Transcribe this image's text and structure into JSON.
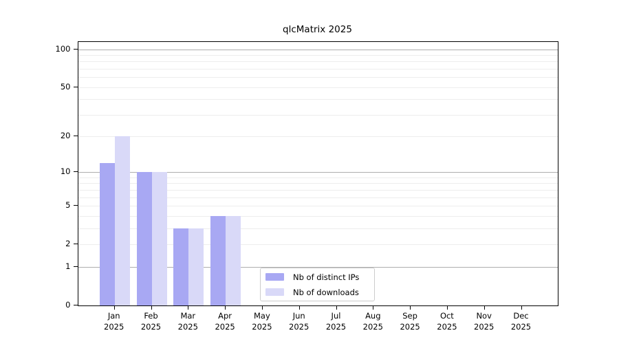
{
  "chart_data": {
    "type": "bar",
    "title": "qlcMatrix 2025",
    "categories": [
      "Jan 2025",
      "Feb 2025",
      "Mar 2025",
      "Apr 2025",
      "May 2025",
      "Jun 2025",
      "Jul 2025",
      "Aug 2025",
      "Sep 2025",
      "Oct 2025",
      "Nov 2025",
      "Dec 2025"
    ],
    "series": [
      {
        "name": "Nb of distinct IPs",
        "color": "#a8a8f3",
        "values": [
          12,
          10,
          3,
          4,
          0,
          0,
          0,
          0,
          0,
          0,
          0,
          0
        ]
      },
      {
        "name": "Nb of downloads",
        "color": "#d9d9f8",
        "values": [
          20,
          10,
          3,
          4,
          0,
          0,
          0,
          0,
          0,
          0,
          0,
          0
        ]
      }
    ],
    "y_axis": {
      "scale": "log10(1+x)",
      "tick_values": [
        100,
        50,
        20,
        10,
        5,
        2,
        1,
        0
      ],
      "tick_labels": [
        "100",
        "50",
        "20",
        "10",
        "5",
        "2",
        "1",
        "0"
      ],
      "ylim": [
        0,
        115
      ]
    },
    "x_axis": {
      "tick_labels_line2": [
        "2025",
        "2025",
        "2025",
        "2025",
        "2025",
        "2025",
        "2025",
        "2025",
        "2025",
        "2025",
        "2025",
        "2025"
      ]
    },
    "grid": {
      "orientation": "horizontal",
      "major_values": [
        1,
        10,
        100
      ],
      "minor_values": [
        2,
        3,
        4,
        5,
        6,
        7,
        8,
        9,
        20,
        30,
        40,
        50,
        60,
        70,
        80,
        90
      ]
    },
    "legend": {
      "position": "inside-bottom-center"
    },
    "colors": {
      "bar_distinct_ips": "#a8a8f3",
      "bar_downloads": "#d9d9f8",
      "major_grid": "#adadad",
      "minor_grid": "#ededed",
      "spine": "#000000",
      "text": "#000000",
      "legend_border": "#cccccc",
      "background": "#ffffff"
    }
  }
}
